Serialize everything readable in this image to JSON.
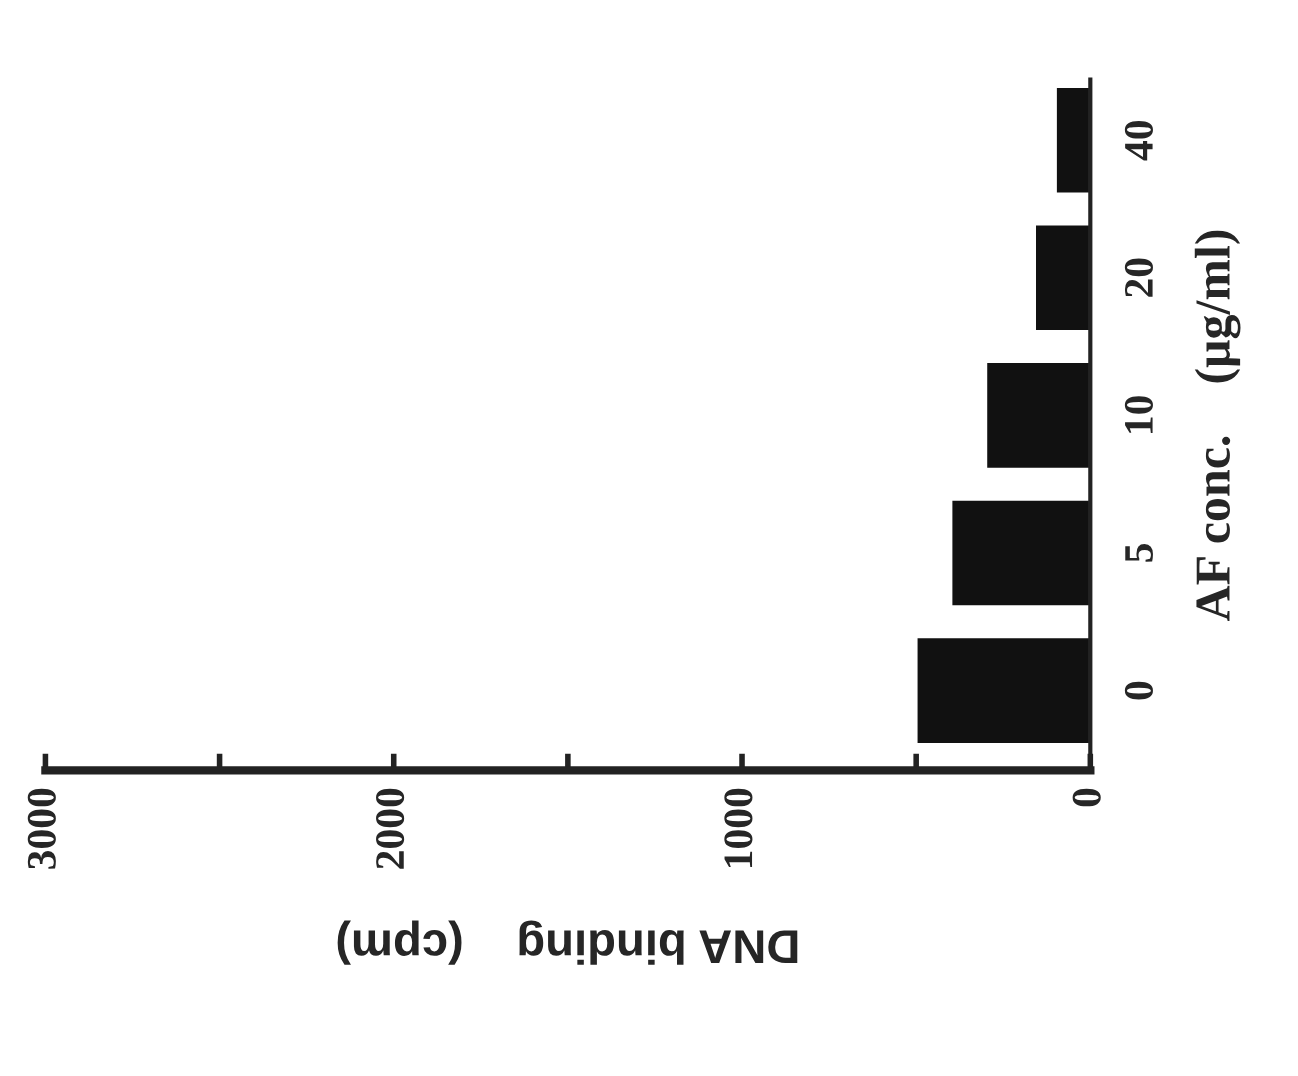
{
  "chart_data": {
    "type": "bar",
    "orientation": "horizontal",
    "xlabel": "DNA binding    (cpm)",
    "ylabel": "AF conc.    (μg/ml)",
    "categories": [
      "40",
      "20",
      "10",
      "5",
      "0"
    ],
    "values": [
      100,
      160,
      300,
      400,
      500
    ],
    "color": "#111111",
    "xlim": [
      3000,
      0
    ],
    "xticks": [
      3000,
      {
        "value": 2500,
        "label": null
      },
      2000,
      {
        "value": 1500,
        "label": null
      },
      1000,
      {
        "value": 500,
        "label": null
      },
      0
    ],
    "grid": false,
    "legend": false
  }
}
